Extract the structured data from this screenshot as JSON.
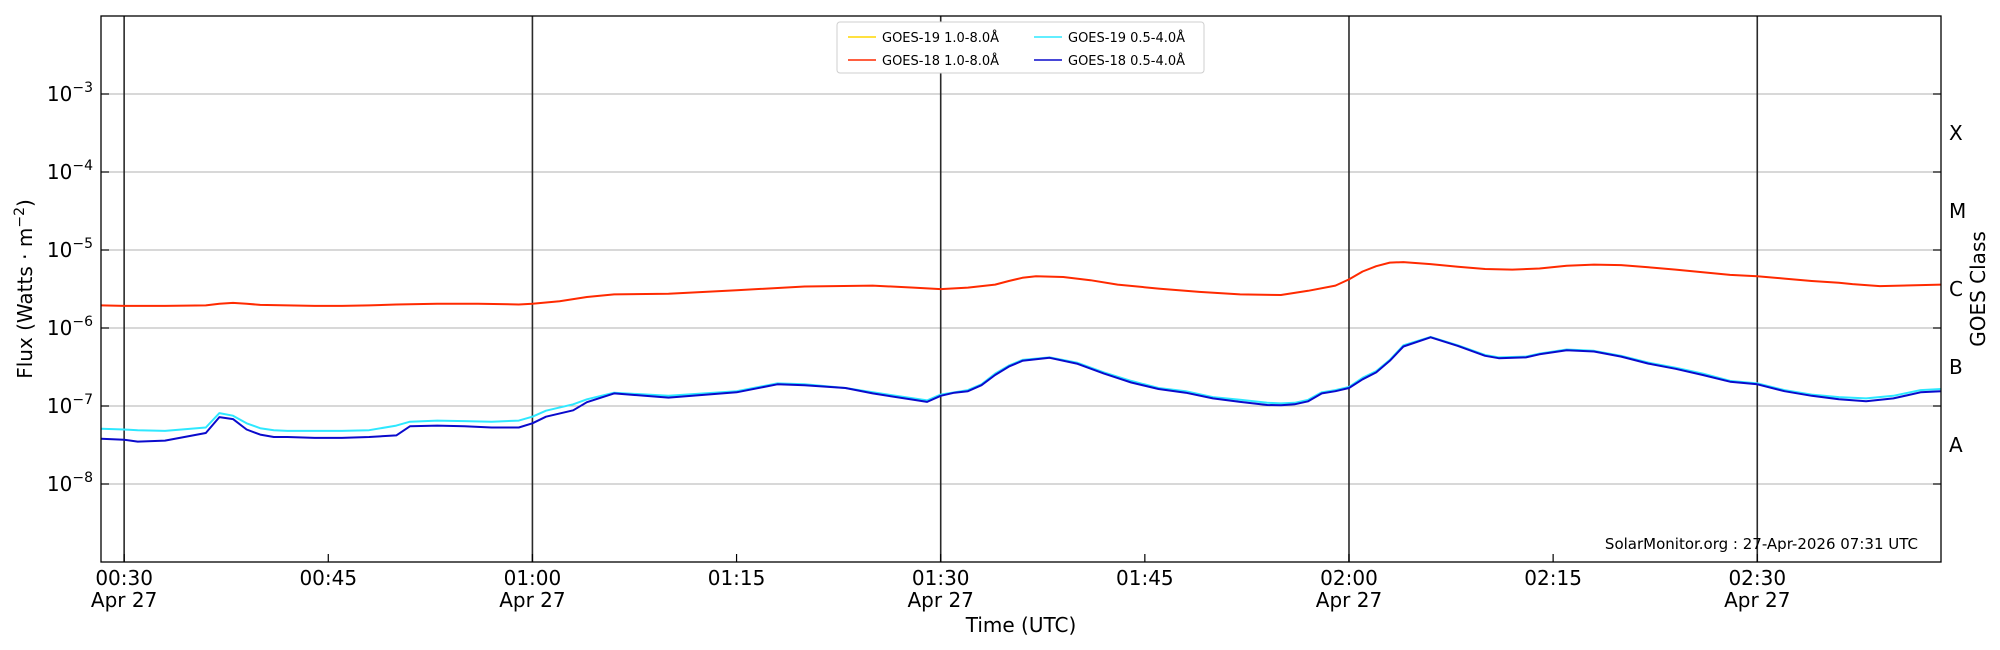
{
  "chart_data": {
    "type": "line",
    "title": "",
    "xlabel": "Time (UTC)",
    "ylabel_prefix": "Flux (Watts · m",
    "ylabel_exp": "−2",
    "ylabel_suffix": ")",
    "y2label": "GOES Class",
    "yscale": "log",
    "ylim": [
      1e-09,
      0.01
    ],
    "xlim_minutes": [
      28.3,
      163.5
    ],
    "grid": "horizontal",
    "legend_position": "top-center",
    "credit": "SolarMonitor.org : 27-Apr-2026 07:31 UTC",
    "y_ticks": [
      {
        "value": -8,
        "exp": "−8"
      },
      {
        "value": -7,
        "exp": "−7"
      },
      {
        "value": -6,
        "exp": "−6"
      },
      {
        "value": -5,
        "exp": "−5"
      },
      {
        "value": -4,
        "exp": "−4"
      },
      {
        "value": -3,
        "exp": "−3"
      }
    ],
    "y_tick_base": "10",
    "goes_classes": [
      {
        "label": "A",
        "log_flux": -7.5
      },
      {
        "label": "B",
        "log_flux": -6.5
      },
      {
        "label": "C",
        "log_flux": -5.5
      },
      {
        "label": "M",
        "log_flux": -4.5
      },
      {
        "label": "X",
        "log_flux": -3.5
      }
    ],
    "x_ticks": [
      {
        "minute": 30,
        "time": "00:30",
        "date": "Apr 27",
        "major": true
      },
      {
        "minute": 45,
        "time": "00:45",
        "date": "",
        "major": false
      },
      {
        "minute": 60,
        "time": "01:00",
        "date": "Apr 27",
        "major": true
      },
      {
        "minute": 75,
        "time": "01:15",
        "date": "",
        "major": false
      },
      {
        "minute": 90,
        "time": "01:30",
        "date": "Apr 27",
        "major": true
      },
      {
        "minute": 105,
        "time": "01:45",
        "date": "",
        "major": false
      },
      {
        "minute": 120,
        "time": "02:00",
        "date": "Apr 27",
        "major": true
      },
      {
        "minute": 135,
        "time": "02:15",
        "date": "",
        "major": false
      },
      {
        "minute": 150,
        "time": "02:30",
        "date": "Apr 27",
        "major": true
      }
    ],
    "series": [
      {
        "name": "GOES-19 1.0-8.0Å",
        "color": "#ffd700",
        "x": [],
        "y": []
      },
      {
        "name": "GOES-18 1.0-8.0Å",
        "color": "#ff2a00",
        "x": [
          28.3,
          30,
          33,
          36,
          37,
          38,
          39,
          40,
          42,
          44,
          46,
          48,
          50,
          51,
          53,
          56,
          59,
          60,
          62,
          64,
          66,
          70,
          75,
          80,
          85,
          88,
          90,
          92,
          94,
          95,
          96,
          97,
          99,
          101,
          103,
          106,
          109,
          112,
          115,
          117,
          119,
          120,
          121,
          122,
          123,
          124,
          126,
          128,
          130,
          132,
          134,
          136,
          138,
          140,
          142,
          144,
          146,
          148,
          150,
          152,
          154,
          156,
          157,
          159,
          162,
          163.5
        ],
        "y": [
          1.95e-06,
          1.92e-06,
          1.92e-06,
          1.95e-06,
          2.05e-06,
          2.1e-06,
          2.05e-06,
          1.98e-06,
          1.95e-06,
          1.92e-06,
          1.92e-06,
          1.95e-06,
          2e-06,
          2.02e-06,
          2.05e-06,
          2.05e-06,
          2e-06,
          2.05e-06,
          2.2e-06,
          2.5e-06,
          2.7e-06,
          2.75e-06,
          3.05e-06,
          3.4e-06,
          3.5e-06,
          3.3e-06,
          3.15e-06,
          3.3e-06,
          3.6e-06,
          4e-06,
          4.4e-06,
          4.6e-06,
          4.5e-06,
          4.1e-06,
          3.6e-06,
          3.2e-06,
          2.9e-06,
          2.7e-06,
          2.65e-06,
          3e-06,
          3.5e-06,
          4.2e-06,
          5.3e-06,
          6.2e-06,
          6.9e-06,
          7e-06,
          6.6e-06,
          6.1e-06,
          5.7e-06,
          5.6e-06,
          5.8e-06,
          6.3e-06,
          6.5e-06,
          6.4e-06,
          6e-06,
          5.6e-06,
          5.2e-06,
          4.8e-06,
          4.6e-06,
          4.3e-06,
          4e-06,
          3.8e-06,
          3.65e-06,
          3.45e-06,
          3.55e-06,
          3.6e-06
        ]
      },
      {
        "name": "GOES-19 0.5-4.0Å",
        "color": "#2ee8ff",
        "x": [
          28.3,
          30,
          31,
          33,
          36,
          37,
          38,
          39,
          40,
          41,
          42,
          44,
          46,
          48,
          50,
          51,
          53,
          55,
          57,
          59,
          60,
          61,
          63,
          64,
          66,
          70,
          75,
          78,
          80,
          83,
          85,
          88,
          89,
          90,
          91,
          92,
          93,
          94,
          95,
          96,
          98,
          100,
          102,
          104,
          106,
          108,
          110,
          112,
          114,
          115,
          116,
          117,
          118,
          119,
          120,
          121,
          122,
          123,
          124,
          126,
          128,
          130,
          131,
          133,
          134,
          136,
          138,
          140,
          142,
          144,
          146,
          148,
          150,
          152,
          154,
          156,
          158,
          160,
          162,
          163.5
        ],
        "y": [
          5.1e-08,
          5e-08,
          4.9e-08,
          4.8e-08,
          5.3e-08,
          8.1e-08,
          7.5e-08,
          6e-08,
          5.2e-08,
          4.9e-08,
          4.8e-08,
          4.8e-08,
          4.8e-08,
          4.9e-08,
          5.6e-08,
          6.3e-08,
          6.5e-08,
          6.4e-08,
          6.3e-08,
          6.5e-08,
          7.3e-08,
          8.7e-08,
          1.05e-07,
          1.22e-07,
          1.48e-07,
          1.35e-07,
          1.55e-07,
          1.95e-07,
          1.9e-07,
          1.7e-07,
          1.5e-07,
          1.25e-07,
          1.18e-07,
          1.4e-07,
          1.5e-07,
          1.6e-07,
          1.9e-07,
          2.6e-07,
          3.3e-07,
          3.9e-07,
          4.2e-07,
          3.6e-07,
          2.7e-07,
          2.1e-07,
          1.7e-07,
          1.55e-07,
          1.3e-07,
          1.2e-07,
          1.1e-07,
          1.08e-07,
          1.1e-07,
          1.2e-07,
          1.5e-07,
          1.6e-07,
          1.75e-07,
          2.3e-07,
          2.8e-07,
          3.9e-07,
          6e-07,
          7.7e-07,
          6e-07,
          4.5e-07,
          4.2e-07,
          4.3e-07,
          4.7e-07,
          5.3e-07,
          5.1e-07,
          4.4e-07,
          3.6e-07,
          3.1e-07,
          2.6e-07,
          2.1e-07,
          1.95e-07,
          1.6e-07,
          1.4e-07,
          1.3e-07,
          1.25e-07,
          1.35e-07,
          1.6e-07,
          1.65e-07
        ]
      },
      {
        "name": "GOES-18 0.5-4.0Å",
        "color": "#0a0acc",
        "x": [
          28.3,
          30,
          31,
          33,
          36,
          37,
          38,
          39,
          40,
          41,
          42,
          44,
          46,
          48,
          50,
          51,
          53,
          55,
          57,
          59,
          60,
          61,
          63,
          64,
          66,
          70,
          75,
          78,
          80,
          83,
          85,
          88,
          89,
          90,
          91,
          92,
          93,
          94,
          95,
          96,
          98,
          100,
          102,
          104,
          106,
          108,
          110,
          112,
          114,
          115,
          116,
          117,
          118,
          119,
          120,
          121,
          122,
          123,
          124,
          126,
          128,
          130,
          131,
          133,
          134,
          136,
          138,
          140,
          142,
          144,
          146,
          148,
          150,
          152,
          154,
          156,
          158,
          160,
          162,
          163.5
        ],
        "y": [
          3.8e-08,
          3.7e-08,
          3.5e-08,
          3.6e-08,
          4.5e-08,
          7.2e-08,
          6.8e-08,
          5e-08,
          4.3e-08,
          4e-08,
          4e-08,
          3.9e-08,
          3.9e-08,
          4e-08,
          4.2e-08,
          5.5e-08,
          5.6e-08,
          5.5e-08,
          5.3e-08,
          5.3e-08,
          6e-08,
          7.3e-08,
          8.8e-08,
          1.12e-07,
          1.45e-07,
          1.28e-07,
          1.5e-07,
          1.9e-07,
          1.85e-07,
          1.7e-07,
          1.45e-07,
          1.2e-07,
          1.13e-07,
          1.35e-07,
          1.48e-07,
          1.55e-07,
          1.85e-07,
          2.5e-07,
          3.2e-07,
          3.8e-07,
          4.15e-07,
          3.5e-07,
          2.6e-07,
          2e-07,
          1.65e-07,
          1.48e-07,
          1.25e-07,
          1.13e-07,
          1.03e-07,
          1.02e-07,
          1.05e-07,
          1.15e-07,
          1.45e-07,
          1.55e-07,
          1.7e-07,
          2.2e-07,
          2.7e-07,
          3.8e-07,
          5.8e-07,
          7.6e-07,
          5.9e-07,
          4.4e-07,
          4.1e-07,
          4.2e-07,
          4.6e-07,
          5.2e-07,
          5e-07,
          4.3e-07,
          3.5e-07,
          3e-07,
          2.5e-07,
          2.05e-07,
          1.9e-07,
          1.55e-07,
          1.35e-07,
          1.22e-07,
          1.15e-07,
          1.25e-07,
          1.5e-07,
          1.55e-07
        ]
      }
    ]
  }
}
